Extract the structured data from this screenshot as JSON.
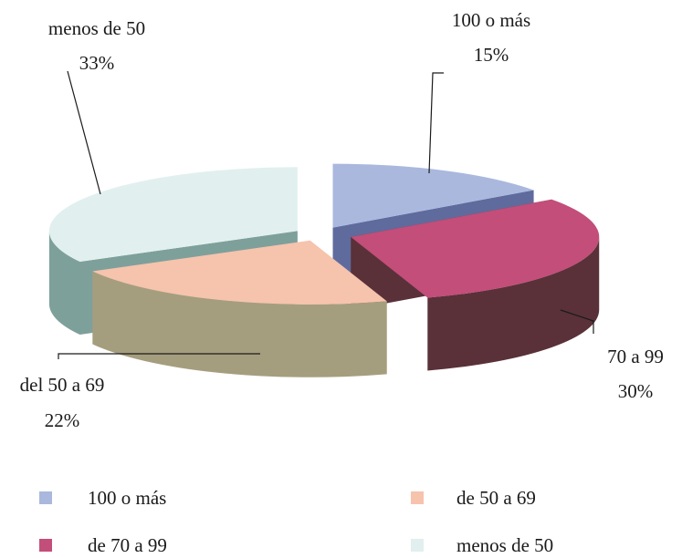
{
  "chart_data": {
    "type": "pie",
    "style": "3d-exploded",
    "slices": [
      {
        "key": "c100",
        "value": 15,
        "label": "100 o más",
        "pct": "15%",
        "color": "#aab8de",
        "side": "#5f6b9d"
      },
      {
        "key": "c70",
        "value": 30,
        "label": "70 a 99",
        "pct": "30%",
        "color": "#c24e79",
        "side": "#5a3139"
      },
      {
        "key": "c50",
        "value": 22,
        "label": "del 50 a 69",
        "pct": "22%",
        "color": "#f6c3ad",
        "side": "#a59e7e"
      },
      {
        "key": "cm50",
        "value": 33,
        "label": "menos de 50",
        "pct": "33%",
        "color": "#e1f0ef",
        "side": "#7ea09b"
      }
    ],
    "legend": {
      "placement": "bottom",
      "items": [
        {
          "label": "100 o más",
          "color": "#aab8de"
        },
        {
          "label": "de 50 a 69",
          "color": "#f6c3ad"
        },
        {
          "label": "de 70 a 99",
          "color": "#c24e79"
        },
        {
          "label": "menos de 50",
          "color": "#e1f0ef"
        }
      ]
    }
  }
}
